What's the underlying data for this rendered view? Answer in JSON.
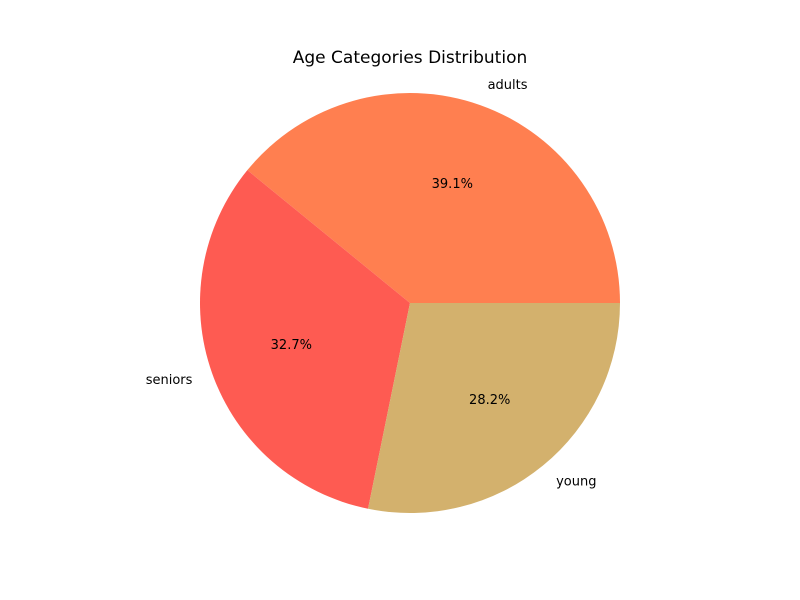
{
  "chart_data": {
    "type": "pie",
    "title": "Age Categories Distribution",
    "slices": [
      {
        "label": "adults",
        "value": 39.1,
        "pct_text": "39.1%",
        "color": "#ff7f50"
      },
      {
        "label": "seniors",
        "value": 32.7,
        "pct_text": "32.7%",
        "color": "#fe5b52"
      },
      {
        "label": "young",
        "value": 28.2,
        "pct_text": "28.2%",
        "color": "#d3b16d"
      }
    ],
    "start_angle_deg": 0,
    "direction": "counterclockwise"
  }
}
